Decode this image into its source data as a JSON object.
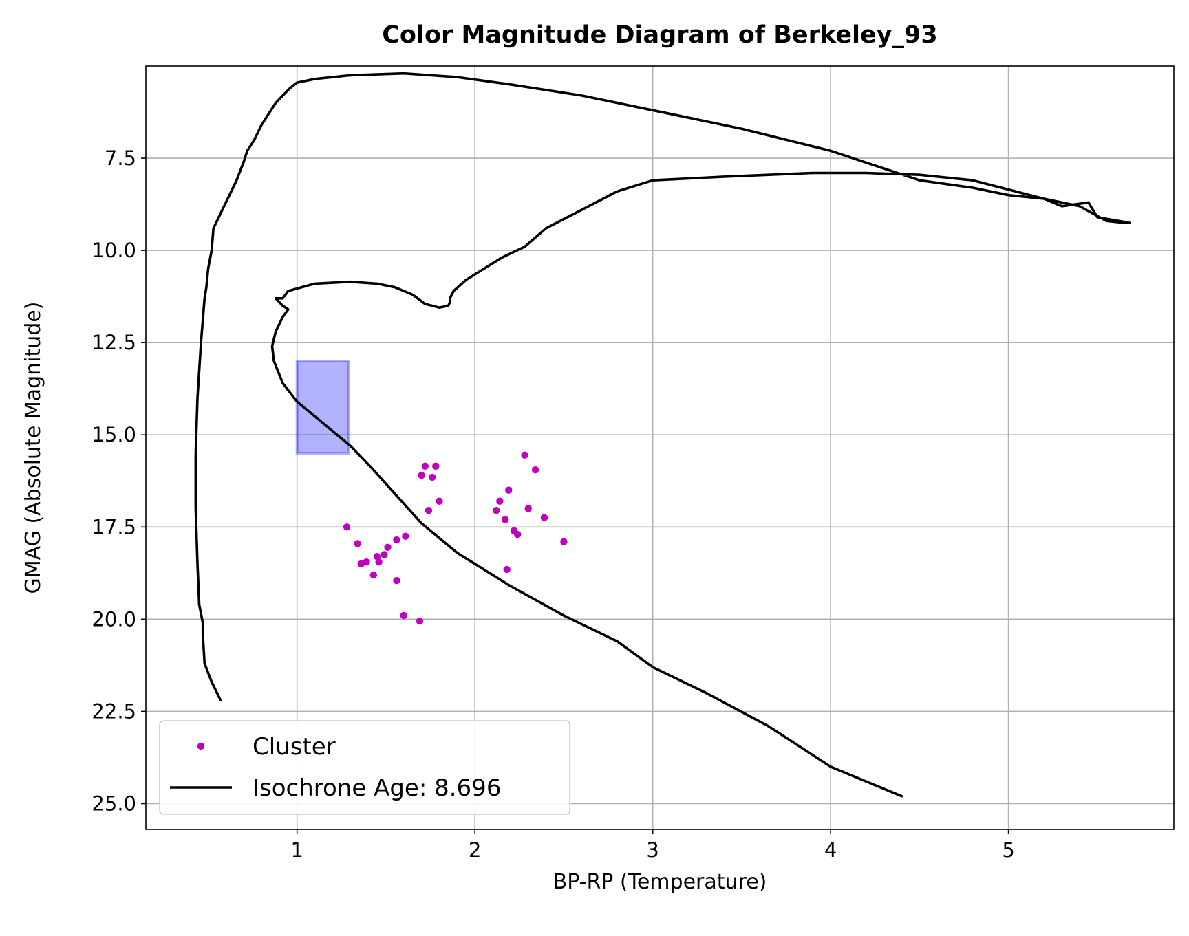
{
  "chart_data": {
    "type": "scatter",
    "title": "Color Magnitude Diagram of Berkeley_93",
    "xlabel": "BP-RP (Temperature)",
    "ylabel": "GMAG (Absolute Magnitude)",
    "xlim": [
      0.15,
      5.93
    ],
    "ylim": [
      25.7,
      5.0
    ],
    "y_inverted": true,
    "grid": true,
    "legend_position": "lower-left",
    "xticks": [
      1,
      2,
      3,
      4,
      5
    ],
    "xtick_labels": [
      "1",
      "2",
      "3",
      "4",
      "5"
    ],
    "yticks": [
      7.5,
      10.0,
      12.5,
      15.0,
      17.5,
      20.0,
      22.5,
      25.0
    ],
    "ytick_labels": [
      "7.5",
      "10.0",
      "12.5",
      "15.0",
      "17.5",
      "20.0",
      "22.5",
      "25.0"
    ],
    "highlight_region": {
      "x": [
        1.0,
        1.29
      ],
      "y": [
        13.0,
        15.5
      ],
      "color": "#0000ff"
    },
    "series": [
      {
        "name": "Cluster",
        "kind": "scatter",
        "color": "#bf00bf",
        "x": [
          1.28,
          1.34,
          1.36,
          1.39,
          1.43,
          1.45,
          1.46,
          1.49,
          1.51,
          1.56,
          1.56,
          1.61,
          1.6,
          1.69,
          1.7,
          1.72,
          1.74,
          1.76,
          1.78,
          1.8,
          2.12,
          2.14,
          2.17,
          2.18,
          2.19,
          2.22,
          2.24,
          2.28,
          2.3,
          2.34,
          2.39,
          2.5
        ],
        "y": [
          17.5,
          17.95,
          18.5,
          18.45,
          18.8,
          18.3,
          18.45,
          18.25,
          18.05,
          17.85,
          18.95,
          17.75,
          19.9,
          20.05,
          16.1,
          15.85,
          17.05,
          16.15,
          15.85,
          16.8,
          17.05,
          16.8,
          17.3,
          18.65,
          16.5,
          17.6,
          17.7,
          15.55,
          17.0,
          15.95,
          17.25,
          17.9
        ]
      },
      {
        "name": "Isochrone Age: 8.696",
        "kind": "line",
        "color": "#000000",
        "x": [
          0.57,
          0.52,
          0.48,
          0.47,
          0.47,
          0.45,
          0.44,
          0.43,
          0.43,
          0.44,
          0.46,
          0.48,
          0.49,
          0.5,
          0.52,
          0.53,
          0.55,
          0.58,
          0.62,
          0.66,
          0.7,
          0.72,
          0.76,
          0.8,
          0.84,
          0.88,
          0.92,
          0.96,
          1.0,
          1.1,
          1.3,
          1.6,
          1.9,
          2.2,
          2.6,
          3.0,
          3.5,
          4.0,
          4.5,
          4.8,
          5.0,
          5.2,
          5.4,
          5.55,
          5.65,
          5.68,
          5.5,
          5.45,
          5.3,
          5.2,
          5.0,
          4.8,
          4.5,
          4.2,
          3.9,
          3.4,
          3.0,
          2.8,
          2.6,
          2.4,
          2.28,
          2.15,
          2.05,
          1.95,
          1.88,
          1.86,
          1.86,
          1.85,
          1.8,
          1.72,
          1.65,
          1.55,
          1.45,
          1.3,
          1.1,
          0.95,
          0.92,
          0.88,
          0.92,
          0.95,
          0.92,
          0.88,
          0.86,
          0.87,
          0.92,
          1.0,
          1.1,
          1.2,
          1.3,
          1.42,
          1.55,
          1.7,
          1.9,
          2.2,
          2.5,
          2.8,
          3.0,
          3.3,
          3.65,
          4.0,
          4.4
        ],
        "y": [
          22.2,
          21.7,
          21.2,
          20.4,
          20.1,
          19.6,
          18.5,
          17.0,
          15.5,
          14.0,
          12.5,
          11.3,
          11.0,
          10.5,
          10.0,
          9.4,
          9.2,
          8.9,
          8.5,
          8.1,
          7.6,
          7.3,
          7.0,
          6.6,
          6.3,
          6.0,
          5.8,
          5.6,
          5.45,
          5.35,
          5.25,
          5.2,
          5.3,
          5.5,
          5.8,
          6.2,
          6.7,
          7.3,
          8.1,
          8.3,
          8.5,
          8.6,
          8.8,
          9.2,
          9.25,
          9.25,
          9.1,
          8.7,
          8.8,
          8.6,
          8.35,
          8.1,
          7.95,
          7.9,
          7.9,
          8.0,
          8.1,
          8.4,
          8.9,
          9.4,
          9.9,
          10.2,
          10.5,
          10.8,
          11.1,
          11.3,
          11.4,
          11.5,
          11.55,
          11.45,
          11.2,
          11.0,
          10.9,
          10.85,
          10.9,
          11.1,
          11.3,
          11.3,
          11.5,
          11.6,
          11.8,
          12.2,
          12.6,
          13.0,
          13.6,
          14.1,
          14.5,
          14.9,
          15.3,
          15.9,
          16.6,
          17.4,
          18.2,
          19.1,
          19.9,
          20.6,
          21.3,
          22.0,
          22.9,
          24.0,
          24.8
        ]
      }
    ]
  }
}
